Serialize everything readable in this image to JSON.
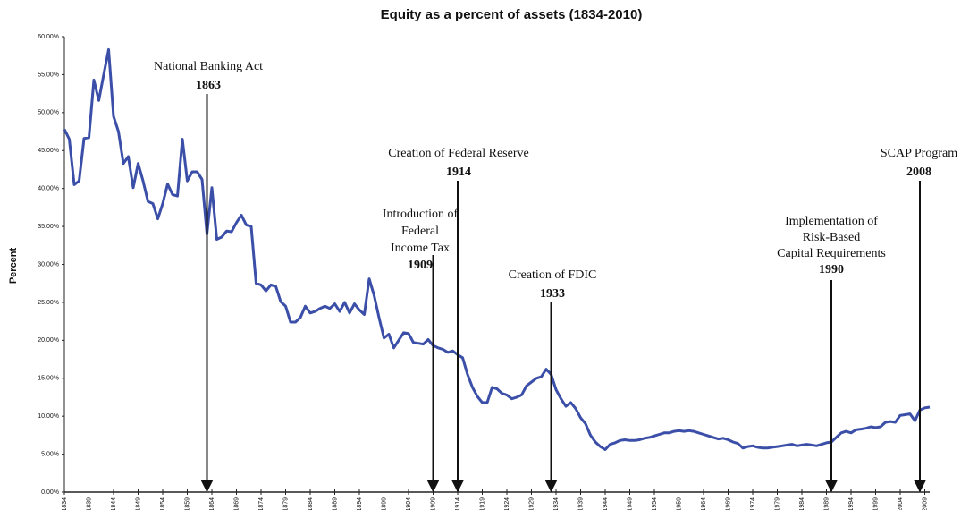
{
  "chart_data": {
    "type": "line",
    "title": "Equity as a percent of assets (1834-2010)",
    "y_label": "Percent",
    "x": [
      1834,
      1835,
      1836,
      1837,
      1838,
      1839,
      1840,
      1841,
      1842,
      1843,
      1844,
      1845,
      1846,
      1847,
      1848,
      1849,
      1850,
      1851,
      1852,
      1853,
      1854,
      1855,
      1856,
      1857,
      1858,
      1859,
      1860,
      1861,
      1862,
      1863,
      1864,
      1865,
      1866,
      1867,
      1868,
      1869,
      1870,
      1871,
      1872,
      1873,
      1874,
      1875,
      1876,
      1877,
      1878,
      1879,
      1880,
      1881,
      1882,
      1883,
      1884,
      1885,
      1886,
      1887,
      1888,
      1889,
      1890,
      1891,
      1892,
      1893,
      1894,
      1895,
      1896,
      1897,
      1898,
      1899,
      1900,
      1901,
      1902,
      1903,
      1904,
      1905,
      1906,
      1907,
      1908,
      1909,
      1910,
      1911,
      1912,
      1913,
      1914,
      1915,
      1916,
      1917,
      1918,
      1919,
      1920,
      1921,
      1922,
      1923,
      1924,
      1925,
      1926,
      1927,
      1928,
      1929,
      1930,
      1931,
      1932,
      1933,
      1934,
      1935,
      1936,
      1937,
      1938,
      1939,
      1940,
      1941,
      1942,
      1943,
      1944,
      1945,
      1946,
      1947,
      1948,
      1949,
      1950,
      1951,
      1952,
      1953,
      1954,
      1955,
      1956,
      1957,
      1958,
      1959,
      1960,
      1961,
      1962,
      1963,
      1964,
      1965,
      1966,
      1967,
      1968,
      1969,
      1970,
      1971,
      1972,
      1973,
      1974,
      1975,
      1976,
      1977,
      1978,
      1979,
      1980,
      1981,
      1982,
      1983,
      1984,
      1985,
      1986,
      1987,
      1988,
      1989,
      1990,
      1991,
      1992,
      1993,
      1994,
      1995,
      1996,
      1997,
      1998,
      1999,
      2000,
      2001,
      2002,
      2003,
      2004,
      2005,
      2006,
      2007,
      2008,
      2009,
      2010
    ],
    "series": [
      {
        "name": "Equity as a percent of assets",
        "color": "#3b4fa8",
        "values": [
          47.8,
          46.5,
          40.5,
          41,
          46.6,
          46.7,
          54.3,
          51.6,
          55,
          58.3,
          49.5,
          47.5,
          43.3,
          44.2,
          40.1,
          43.3,
          41,
          38.3,
          38,
          36,
          38,
          40.6,
          39.2,
          39,
          46.5,
          41,
          42.2,
          42.2,
          41.2,
          34,
          40.1,
          33.3,
          33.6,
          34.4,
          34.3,
          35.5,
          36.5,
          35.2,
          35,
          27.5,
          27.3,
          26.5,
          27.3,
          27.1,
          25.1,
          24.5,
          22.4,
          22.4,
          23,
          24.5,
          23.6,
          23.8,
          24.2,
          24.5,
          24.2,
          24.8,
          23.8,
          25,
          23.6,
          24.8,
          24,
          23.4,
          28.1,
          25.9,
          23,
          20.3,
          20.8,
          19,
          20,
          21,
          20.9,
          19.7,
          19.6,
          19.5,
          20.1,
          19.3,
          19,
          18.8,
          18.4,
          18.6,
          18.1,
          17.7,
          15.5,
          13.8,
          12.6,
          11.8,
          11.8,
          13.8,
          13.6,
          13,
          12.8,
          12.3,
          12.5,
          12.8,
          14,
          14.5,
          15,
          15.2,
          16.2,
          15.5,
          13.5,
          12.3,
          11.3,
          11.8,
          11,
          9.8,
          9,
          7.5,
          6.6,
          6,
          5.6,
          6.3,
          6.5,
          6.8,
          6.9,
          6.8,
          6.8,
          6.9,
          7.1,
          7.2,
          7.4,
          7.6,
          7.8,
          7.8,
          8,
          8.1,
          8,
          8.1,
          8,
          7.8,
          7.6,
          7.4,
          7.2,
          7,
          7.1,
          6.9,
          6.6,
          6.4,
          5.8,
          6,
          6.1,
          5.9,
          5.8,
          5.8,
          5.9,
          6,
          6.1,
          6.2,
          6.3,
          6.1,
          6.2,
          6.3,
          6.2,
          6.1,
          6.3,
          6.5,
          6.6,
          7.2,
          7.8,
          8,
          7.8,
          8.2,
          8.3,
          8.4,
          8.6,
          8.5,
          8.6,
          9.2,
          9.3,
          9.2,
          10.1,
          10.2,
          10.3,
          9.4,
          10.8,
          11.1,
          11.2
        ]
      }
    ],
    "xlim": [
      1834,
      2010
    ],
    "xticks": [
      1834,
      1839,
      1844,
      1849,
      1854,
      1859,
      1864,
      1869,
      1874,
      1879,
      1884,
      1889,
      1894,
      1899,
      1904,
      1909,
      1914,
      1919,
      1924,
      1929,
      1934,
      1939,
      1944,
      1949,
      1954,
      1959,
      1964,
      1969,
      1974,
      1979,
      1984,
      1989,
      1994,
      1999,
      2004,
      2009
    ],
    "ylim": [
      0,
      60
    ],
    "yticks": [
      {
        "value": 0,
        "label": "0.00%"
      },
      {
        "value": 5,
        "label": "5.00%"
      },
      {
        "value": 10,
        "label": "10.00%"
      },
      {
        "value": 15,
        "label": "15.00%"
      },
      {
        "value": 20,
        "label": "20.00%"
      },
      {
        "value": 25,
        "label": "25.00%"
      },
      {
        "value": 30,
        "label": "30.00%"
      },
      {
        "value": 35,
        "label": "35.00%"
      },
      {
        "value": 40,
        "label": "40.00%"
      },
      {
        "value": 45,
        "label": "45.00%"
      },
      {
        "value": 50,
        "label": "50.00%"
      },
      {
        "value": 55,
        "label": "55.00%"
      },
      {
        "value": 60,
        "label": "60.00%"
      }
    ],
    "annotations": [
      {
        "lines": [
          "National Banking Act"
        ],
        "year": 1863
      },
      {
        "lines": [
          "Creation of Federal Reserve"
        ],
        "year": 1914
      },
      {
        "lines": [
          "Introduction of",
          "Federal",
          "Income Tax"
        ],
        "year": 1909
      },
      {
        "lines": [
          "Creation of FDIC"
        ],
        "year": 1933
      },
      {
        "lines": [
          "Implementation of",
          "Risk-Based",
          "Capital Requirements"
        ],
        "year": 1990
      },
      {
        "lines": [
          "SCAP Program"
        ],
        "year": 2008
      }
    ]
  }
}
